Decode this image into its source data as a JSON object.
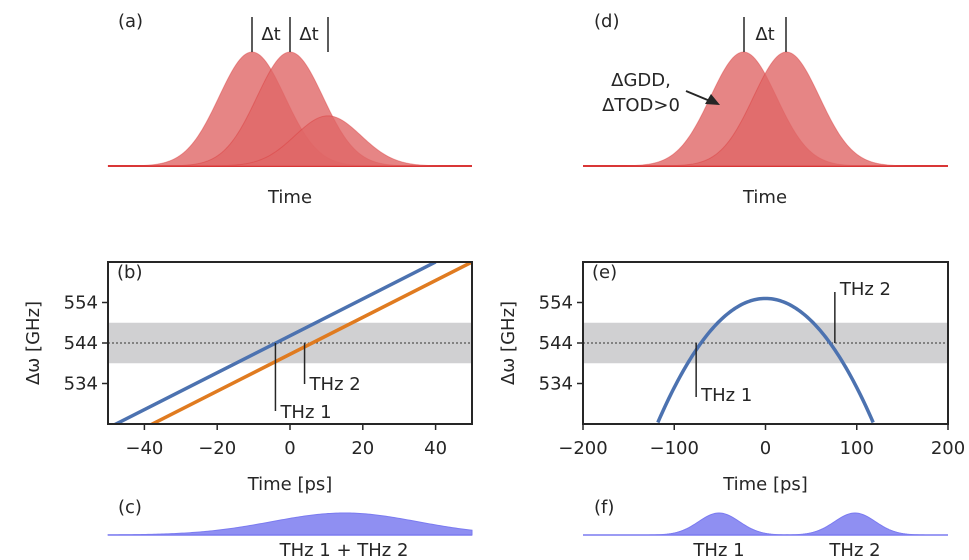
{
  "colors": {
    "pulse": "#e06666",
    "pulse_dark": "#d93636",
    "blue": "#4c72b0",
    "orange": "#e07b20",
    "band": "#d0d0d2",
    "thz": "#7b7bf0"
  },
  "chart_data": [
    {
      "id": "a",
      "type": "area",
      "panel_label": "(a)",
      "xlabel": "Time",
      "annotations": [
        "Δt",
        "Δt"
      ],
      "series": [
        {
          "center": -1,
          "amplitude": 1.0,
          "width": 1
        },
        {
          "center": 0,
          "amplitude": 1.0,
          "width": 1
        },
        {
          "center": 1,
          "amplitude": 0.44,
          "width": 1
        }
      ]
    },
    {
      "id": "b",
      "type": "line",
      "panel_label": "(b)",
      "xlabel": "Time [ps]",
      "ylabel": "Δω [GHz]",
      "xlim": [
        -50,
        50
      ],
      "ylim": [
        524,
        564
      ],
      "xticks": [
        -40,
        -20,
        0,
        20,
        40
      ],
      "yticks": [
        534,
        544,
        554
      ],
      "band": [
        539,
        549
      ],
      "reference_line": 544,
      "series": [
        {
          "color": "blue",
          "x": [
            -50,
            40
          ],
          "y": [
            523,
            564
          ]
        },
        {
          "color": "orange",
          "x": [
            -40,
            50
          ],
          "y": [
            523,
            564
          ]
        }
      ],
      "annotations": [
        {
          "text": "THz 1",
          "x": -4,
          "y": 544
        },
        {
          "text": "THz 2",
          "x": 4,
          "y": 544
        }
      ]
    },
    {
      "id": "c",
      "type": "area",
      "panel_label": "(c)",
      "label": "THz 1 + THz 2",
      "series": [
        {
          "center": 15,
          "amplitude": 1.0,
          "width": 20
        }
      ]
    },
    {
      "id": "d",
      "type": "area",
      "panel_label": "(d)",
      "xlabel": "Time",
      "annotations": [
        "Δt",
        "ΔGDD,",
        "ΔTOD>0"
      ],
      "series": [
        {
          "center": -0.5,
          "amplitude": 1.0,
          "width": 1
        },
        {
          "center": 0.5,
          "amplitude": 1.0,
          "width": 1
        }
      ]
    },
    {
      "id": "e",
      "type": "line",
      "panel_label": "(e)",
      "xlabel": "Time [ps]",
      "ylabel": "Δω [GHz]",
      "xlim": [
        -200,
        200
      ],
      "ylim": [
        524,
        564
      ],
      "xticks": [
        -200,
        -100,
        0,
        100,
        200
      ],
      "yticks": [
        534,
        544,
        554
      ],
      "band": [
        539,
        549
      ],
      "reference_line": 544,
      "series": [
        {
          "color": "blue",
          "type": "parabola",
          "vertex_x": 0,
          "vertex_y": 555,
          "a": -0.0022,
          "x_range": [
            -118,
            118
          ]
        }
      ],
      "annotations": [
        {
          "text": "THz 1",
          "x": -76,
          "y": 544
        },
        {
          "text": "THz 2",
          "x": 76,
          "y": 544
        }
      ]
    },
    {
      "id": "f",
      "type": "area",
      "panel_label": "(f)",
      "labels": [
        "THz 1",
        "THz 2"
      ],
      "series": [
        {
          "center": -50,
          "amplitude": 1.0,
          "width": 15
        },
        {
          "center": 50,
          "amplitude": 1.0,
          "width": 15
        }
      ]
    }
  ]
}
